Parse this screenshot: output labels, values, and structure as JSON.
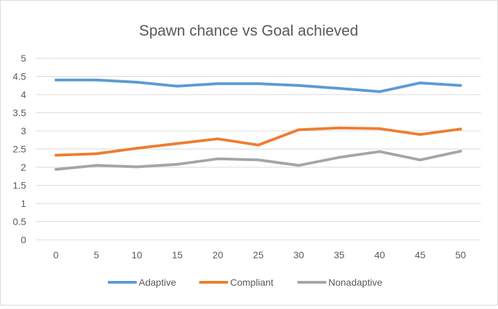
{
  "chart_data": {
    "type": "line",
    "title": "Spawn chance vs Goal achieved",
    "xlabel": "",
    "ylabel": "",
    "categories": [
      "0",
      "5",
      "10",
      "15",
      "20",
      "25",
      "30",
      "35",
      "40",
      "45",
      "50"
    ],
    "ylim": [
      0,
      5
    ],
    "yticks": [
      "0",
      "0.5",
      "1",
      "1.5",
      "2",
      "2.5",
      "3",
      "3.5",
      "4",
      "4.5",
      "5"
    ],
    "grid": true,
    "legend": "bottom",
    "series": [
      {
        "name": "Adaptive",
        "color": "#5B9BD5",
        "values": [
          4.4,
          4.4,
          4.34,
          4.23,
          4.3,
          4.3,
          4.25,
          4.17,
          4.08,
          4.32,
          4.25
        ]
      },
      {
        "name": "Compliant",
        "color": "#ED7D31",
        "values": [
          2.33,
          2.37,
          2.52,
          2.65,
          2.78,
          2.61,
          3.03,
          3.08,
          3.06,
          2.9,
          3.05
        ]
      },
      {
        "name": "Nonadaptive",
        "color": "#A5A5A5",
        "values": [
          1.94,
          2.05,
          2.01,
          2.08,
          2.23,
          2.2,
          2.05,
          2.27,
          2.43,
          2.2,
          2.44
        ]
      }
    ]
  }
}
